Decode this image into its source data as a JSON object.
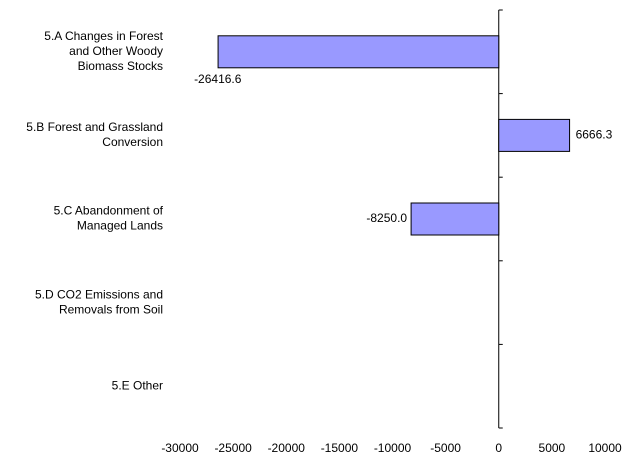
{
  "chart_data": {
    "type": "barh",
    "categories": [
      [
        "5.A Changes in Forest",
        "and Other Woody",
        "Biomass Stocks"
      ],
      [
        "5.B Forest and Grassland",
        "Conversion"
      ],
      [
        "5.C Abandonment of",
        "Managed Lands"
      ],
      [
        "5.D CO2 Emissions and",
        "Removals from Soil"
      ],
      [
        "5.E Other"
      ]
    ],
    "values": [
      -26416.6,
      6666.3,
      -8250.0,
      null,
      null
    ],
    "value_labels": [
      "-26416.6",
      "6666.3",
      "-8250.0",
      null,
      null
    ],
    "color": "#9999ff",
    "xlim": [
      -30000,
      10000
    ],
    "xticks": [
      -30000,
      -25000,
      -20000,
      -15000,
      -10000,
      -5000,
      0,
      5000,
      10000
    ],
    "grid": false
  }
}
